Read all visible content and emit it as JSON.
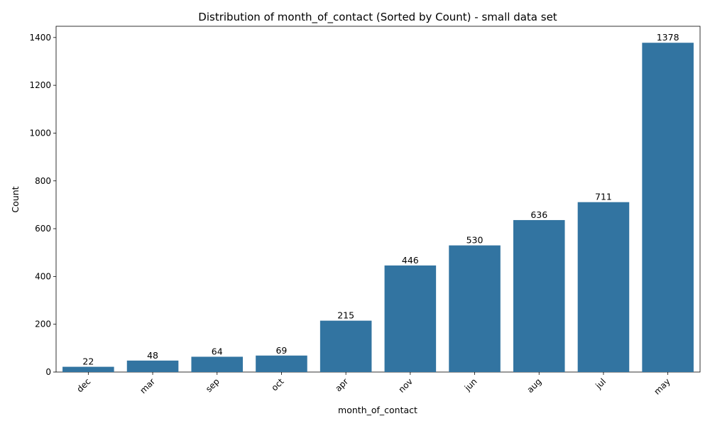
{
  "chart_data": {
    "type": "bar",
    "title": "Distribution of month_of_contact (Sorted by Count) - small data set",
    "xlabel": "month_of_contact",
    "ylabel": "Count",
    "categories": [
      "dec",
      "mar",
      "sep",
      "oct",
      "apr",
      "nov",
      "jun",
      "aug",
      "jul",
      "may"
    ],
    "values": [
      22,
      48,
      64,
      69,
      215,
      446,
      530,
      636,
      711,
      1378
    ],
    "ylim": [
      0,
      1447
    ],
    "yticks": [
      0,
      200,
      400,
      600,
      800,
      1000,
      1200,
      1400
    ],
    "bar_color": "#3274a1",
    "grid": false,
    "data_labels": true
  }
}
